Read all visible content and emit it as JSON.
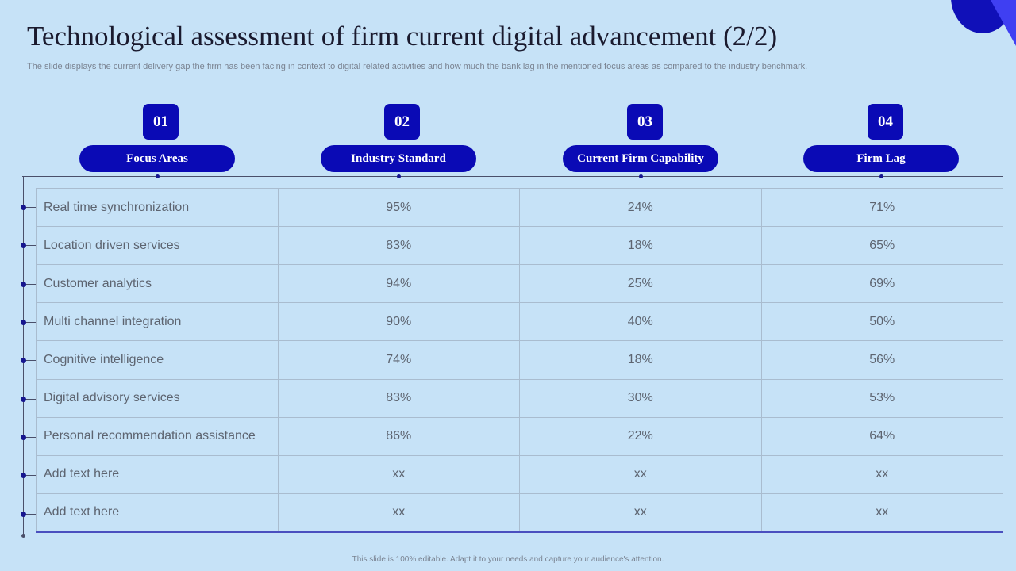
{
  "title": "Technological assessment of firm current digital advancement (2/2)",
  "subtitle": "The slide displays the current delivery gap the firm has been facing in context to digital related activities and how much the bank lag in the mentioned focus areas as compared to the industry benchmark.",
  "columns": [
    {
      "num": "01",
      "label": "Focus Areas"
    },
    {
      "num": "02",
      "label": "Industry Standard"
    },
    {
      "num": "03",
      "label": "Current Firm Capability"
    },
    {
      "num": "04",
      "label": "Firm Lag"
    }
  ],
  "rows": [
    {
      "area": "Real time synchronization",
      "standard": "95%",
      "capability": "24%",
      "lag": "71%"
    },
    {
      "area": "Location driven services",
      "standard": "83%",
      "capability": "18%",
      "lag": "65%"
    },
    {
      "area": "Customer analytics",
      "standard": "94%",
      "capability": "25%",
      "lag": "69%"
    },
    {
      "area": "Multi channel integration",
      "standard": "90%",
      "capability": "40%",
      "lag": "50%"
    },
    {
      "area": "Cognitive intelligence",
      "standard": "74%",
      "capability": "18%",
      "lag": "56%"
    },
    {
      "area": "Digital advisory services",
      "standard": "83%",
      "capability": "30%",
      "lag": "53%"
    },
    {
      "area": "Personal recommendation assistance",
      "standard": "86%",
      "capability": "22%",
      "lag": "64%"
    },
    {
      "area": "Add text here",
      "standard": "xx",
      "capability": "xx",
      "lag": "xx"
    },
    {
      "area": "Add text here",
      "standard": "xx",
      "capability": "xx",
      "lag": "xx"
    }
  ],
  "footer": "This slide is 100% editable. Adapt it to your needs and capture your audience's attention.",
  "colors": {
    "accent": "#0a0ab5",
    "background": "#c6e2f7"
  }
}
